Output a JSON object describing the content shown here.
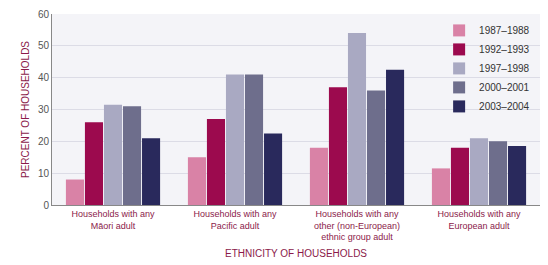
{
  "chart_data": {
    "type": "bar",
    "x_label": "ETHNICITY OF HOUSEHOLDS",
    "y_label": "PERCENT OF HOUSEHOLDS",
    "categories": [
      "Households with any\nMāori adult",
      "Households with any\nPacific adult",
      "Households with any\nother (non-European)\nethnic group adult",
      "Households with any\nEuropean adult"
    ],
    "series": [
      {
        "name": "1987–1988",
        "color": "#d982a6",
        "values": [
          8,
          15,
          18,
          11.5
        ]
      },
      {
        "name": "1992–1993",
        "color": "#9c0a4e",
        "values": [
          26,
          27,
          37,
          18
        ]
      },
      {
        "name": "1997–1998",
        "color": "#a9a9c2",
        "values": [
          31.5,
          41,
          54,
          21
        ]
      },
      {
        "name": "2000–2001",
        "color": "#6e6e8c",
        "values": [
          31,
          41,
          36,
          20
        ]
      },
      {
        "name": "2003–2004",
        "color": "#29295c",
        "values": [
          21,
          22.5,
          42.5,
          18.5
        ]
      }
    ],
    "ylim": [
      0,
      60
    ],
    "yticks": [
      0,
      10,
      20,
      30,
      40,
      50,
      60
    ],
    "grid": true,
    "legend": "upper right"
  }
}
